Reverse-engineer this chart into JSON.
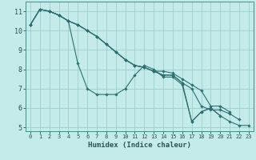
{
  "xlabel": "Humidex (Indice chaleur)",
  "bg_color": "#c5eaea",
  "line_color": "#2d7070",
  "grid_color": "#9dcece",
  "series": [
    [
      10.3,
      11.1,
      11.0,
      10.8,
      10.5,
      8.3,
      7.0,
      6.7,
      6.7,
      6.7,
      7.0,
      7.7,
      8.2,
      8.0,
      7.6,
      7.6,
      7.2,
      5.3,
      5.8,
      6.0,
      5.6,
      5.3,
      5.1,
      5.1
    ],
    [
      10.3,
      11.1,
      11.0,
      10.8,
      10.5,
      10.3,
      10.0,
      9.7,
      9.3,
      8.9,
      8.5,
      8.2,
      8.1,
      7.9,
      7.7,
      7.7,
      7.3,
      7.0,
      6.1,
      5.9,
      5.9,
      5.7,
      5.4,
      null
    ],
    [
      10.3,
      11.1,
      11.0,
      10.8,
      10.5,
      10.3,
      10.0,
      9.7,
      9.3,
      8.9,
      8.5,
      8.2,
      8.1,
      7.9,
      7.9,
      7.8,
      7.5,
      7.2,
      6.9,
      6.1,
      6.1,
      5.8,
      null,
      null
    ],
    [
      10.3,
      11.1,
      11.0,
      10.8,
      10.5,
      10.3,
      10.0,
      9.7,
      9.3,
      8.9,
      8.5,
      8.2,
      8.1,
      7.9,
      7.7,
      7.7,
      7.3,
      5.3,
      5.8,
      6.0,
      5.6,
      null,
      null,
      null
    ]
  ],
  "xlim": [
    -0.5,
    23.5
  ],
  "ylim": [
    4.8,
    11.5
  ],
  "yticks": [
    5,
    6,
    7,
    8,
    9,
    10,
    11
  ],
  "xticks": [
    0,
    1,
    2,
    3,
    4,
    5,
    6,
    7,
    8,
    9,
    10,
    11,
    12,
    13,
    14,
    15,
    16,
    17,
    18,
    19,
    20,
    21,
    22,
    23
  ],
  "xtick_labels": [
    "0",
    "1",
    "2",
    "3",
    "4",
    "5",
    "6",
    "7",
    "8",
    "9",
    "10",
    "11",
    "12",
    "13",
    "14",
    "15",
    "16",
    "17",
    "18",
    "19",
    "20",
    "21",
    "22",
    "23"
  ]
}
